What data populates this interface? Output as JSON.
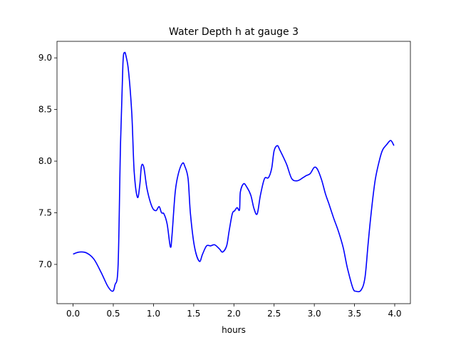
{
  "chart_data": {
    "type": "line",
    "title": "Water Depth h at gauge 3",
    "xlabel": "hours",
    "ylabel": "",
    "xlim": [
      -0.2,
      4.195
    ],
    "ylim": [
      6.62,
      9.16
    ],
    "grid": false,
    "xticks": [
      0.0,
      0.5,
      1.0,
      1.5,
      2.0,
      2.5,
      3.0,
      3.5,
      4.0
    ],
    "xtick_labels": [
      "0.0",
      "0.5",
      "1.0",
      "1.5",
      "2.0",
      "2.5",
      "3.0",
      "3.5",
      "4.0"
    ],
    "yticks": [
      7.0,
      7.5,
      8.0,
      8.5,
      9.0
    ],
    "ytick_labels": [
      "7.0",
      "7.5",
      "8.0",
      "8.5",
      "9.0"
    ],
    "series": [
      {
        "name": "h",
        "color": "#0000ff",
        "x": [
          0,
          0.08,
          0.17,
          0.26,
          0.35,
          0.43,
          0.49,
          0.52,
          0.56,
          0.59,
          0.62,
          0.64,
          0.66,
          0.69,
          0.73,
          0.76,
          0.8,
          0.83,
          0.85,
          0.88,
          0.92,
          0.98,
          1.03,
          1.07,
          1.1,
          1.13,
          1.17,
          1.21,
          1.23,
          1.27,
          1.31,
          1.36,
          1.39,
          1.43,
          1.46,
          1.51,
          1.57,
          1.61,
          1.66,
          1.71,
          1.76,
          1.82,
          1.86,
          1.91,
          1.94,
          1.98,
          2.01,
          2.04,
          2.07,
          2.08,
          2.12,
          2.16,
          2.21,
          2.25,
          2.29,
          2.33,
          2.38,
          2.43,
          2.47,
          2.5,
          2.54,
          2.57,
          2.62,
          2.66,
          2.72,
          2.79,
          2.86,
          2.9,
          2.95,
          3.0,
          3.04,
          3.09,
          3.14,
          3.18,
          3.24,
          3.3,
          3.36,
          3.41,
          3.48,
          3.52,
          3.58,
          3.63,
          3.67,
          3.72,
          3.76,
          3.81,
          3.85,
          3.9,
          3.95,
          3.99
        ],
        "y": [
          7.1,
          7.12,
          7.11,
          7.05,
          6.92,
          6.79,
          6.74,
          6.8,
          7.0,
          8.18,
          8.94,
          9.05,
          9.01,
          8.87,
          8.46,
          7.9,
          7.65,
          7.77,
          7.95,
          7.94,
          7.73,
          7.56,
          7.52,
          7.56,
          7.5,
          7.49,
          7.39,
          7.17,
          7.28,
          7.7,
          7.88,
          7.98,
          7.95,
          7.83,
          7.49,
          7.17,
          7.03,
          7.1,
          7.18,
          7.18,
          7.19,
          7.15,
          7.12,
          7.18,
          7.32,
          7.49,
          7.52,
          7.55,
          7.53,
          7.7,
          7.78,
          7.75,
          7.67,
          7.54,
          7.49,
          7.67,
          7.83,
          7.84,
          7.93,
          8.1,
          8.15,
          8.11,
          8.03,
          7.96,
          7.83,
          7.81,
          7.84,
          7.86,
          7.88,
          7.94,
          7.92,
          7.82,
          7.68,
          7.59,
          7.45,
          7.32,
          7.16,
          6.97,
          6.77,
          6.74,
          6.75,
          6.87,
          7.21,
          7.59,
          7.83,
          8.01,
          8.11,
          8.16,
          8.2,
          8.15
        ]
      }
    ]
  }
}
